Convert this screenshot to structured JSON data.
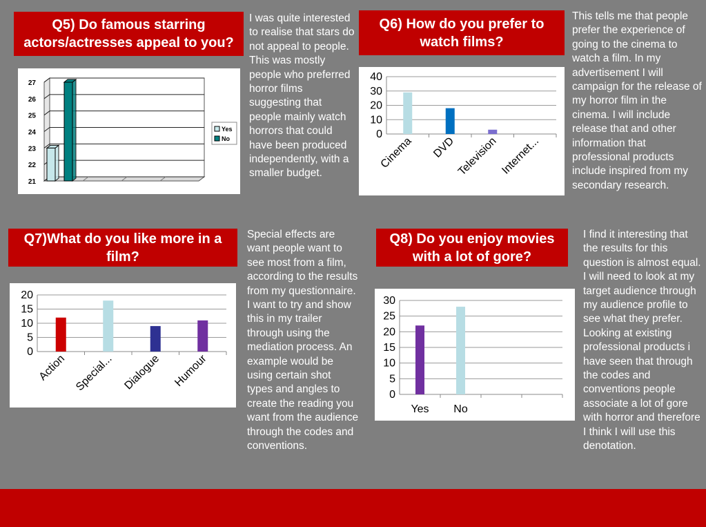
{
  "q5": {
    "title": "Q5) Do famous starring actors/actresses appeal to you?",
    "text": "I was quite interested to realise that stars do not appeal to people. This was mostly people who preferred horror films suggesting that people mainly watch horrors that could have been produced independently, with a smaller budget."
  },
  "q6": {
    "title": "Q6) How do you prefer to watch films?",
    "text": "This tells me that people prefer the experience of going to the cinema to watch a film. In my advertisement I will campaign for the release of my horror film in the cinema. I will include release that and other information that professional products include inspired from my secondary research."
  },
  "q7": {
    "title": "Q7)What do you like more in a film?",
    "text": "Special effects are want people want to see most from a film, according to the results from my questionnaire. I want to try and show this in my trailer through using the mediation process. An example would be using certain shot types and angles to create the reading you want from the audience through the codes and conventions."
  },
  "q8": {
    "title": "Q8) Do you enjoy movies with a lot of gore?",
    "text": "I find it interesting that the results for this question is almost equal. I will need to look at my target audience through my audience profile to see what they prefer. Looking at existing professional products i have seen that through the codes and conventions people associate a lot of gore with horror and therefore I think I will use this denotation."
  },
  "chart_data": [
    {
      "id": "q5",
      "type": "bar",
      "style": "3d",
      "categories": [
        ""
      ],
      "series": [
        {
          "name": "Yes",
          "values": [
            23
          ],
          "color": "#c6e7ea"
        },
        {
          "name": "No",
          "values": [
            27
          ],
          "color": "#008080"
        }
      ],
      "ylim": [
        21,
        27
      ],
      "yticks": [
        21,
        22,
        23,
        24,
        25,
        26,
        27
      ],
      "legend": "right",
      "grid": true
    },
    {
      "id": "q6",
      "type": "bar",
      "categories": [
        "Cinema",
        "DVD",
        "Television",
        "Internet..."
      ],
      "values": [
        29,
        18,
        3,
        0
      ],
      "colors": [
        "#b7dde4",
        "#0070c0",
        "#7b6ecf",
        "#7b6ecf"
      ],
      "ylim": [
        0,
        40
      ],
      "yticks": [
        0,
        10,
        20,
        30,
        40
      ],
      "grid": true,
      "legend": "none"
    },
    {
      "id": "q7",
      "type": "bar",
      "categories": [
        "Action",
        "Special...",
        "Dialogue",
        "Humour"
      ],
      "values": [
        12,
        18,
        9,
        11
      ],
      "colors": [
        "#cc0000",
        "#b7dde4",
        "#2e3192",
        "#7030a0"
      ],
      "ylim": [
        0,
        20
      ],
      "yticks": [
        0,
        5,
        10,
        15,
        20
      ],
      "grid": true,
      "legend": "none"
    },
    {
      "id": "q8",
      "type": "bar",
      "categories": [
        "Yes",
        "No",
        "",
        ""
      ],
      "values": [
        22,
        28,
        0,
        0
      ],
      "colors": [
        "#7030a0",
        "#b7dde4",
        "#ffffff",
        "#ffffff"
      ],
      "ylim": [
        0,
        30
      ],
      "yticks": [
        0,
        5,
        10,
        15,
        20,
        25,
        30
      ],
      "grid": true,
      "legend": "none"
    }
  ]
}
